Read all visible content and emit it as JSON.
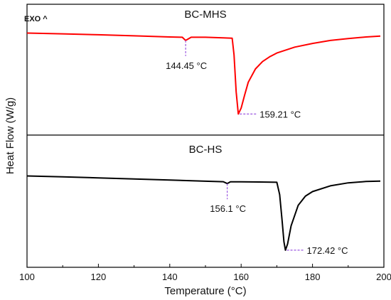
{
  "chart_data": {
    "type": "line",
    "xlabel": "Temperature (°C)",
    "ylabel": "Heat Flow (W/g)",
    "xlim": [
      100,
      200
    ],
    "xticks": [
      100,
      120,
      140,
      160,
      180,
      200
    ],
    "exo_label": "EXO ^",
    "grid": false,
    "panels": [
      {
        "title": "BC-MHS",
        "color": "#ff0000",
        "x": [
          100,
          110,
          120,
          130,
          140,
          143.5,
          144.45,
          146,
          150,
          155,
          157.5,
          158,
          158.6,
          159.21,
          160,
          161,
          162,
          164,
          166,
          168,
          170,
          175,
          180,
          185,
          190,
          195,
          199
        ],
        "y": [
          -0.05,
          -0.15,
          -0.28,
          -0.42,
          -0.58,
          -0.62,
          -1.05,
          -0.62,
          -0.62,
          -0.7,
          -0.75,
          -3.0,
          -8.0,
          -11.0,
          -10.2,
          -8.4,
          -6.7,
          -4.9,
          -3.9,
          -3.25,
          -2.75,
          -1.95,
          -1.45,
          -1.05,
          -0.8,
          -0.58,
          -0.45
        ],
        "annotations": [
          {
            "text": "144.45 °C",
            "x": 144.45
          },
          {
            "text": "159.21 °C",
            "x": 159.21
          }
        ]
      },
      {
        "title": "BC-HS",
        "color": "#000000",
        "x": [
          100,
          110,
          120,
          130,
          140,
          150,
          155,
          156.1,
          157,
          160,
          165,
          170,
          170.8,
          171.5,
          172,
          172.42,
          173,
          174,
          176,
          178,
          180,
          185,
          190,
          195,
          199
        ],
        "y": [
          -0.05,
          -0.17,
          -0.3,
          -0.44,
          -0.58,
          -0.74,
          -0.8,
          -1.05,
          -0.82,
          -0.82,
          -0.84,
          -0.88,
          -2.5,
          -6.0,
          -8.7,
          -9.8,
          -9.0,
          -6.6,
          -3.9,
          -2.7,
          -2.1,
          -1.35,
          -0.95,
          -0.78,
          -0.72
        ],
        "annotations": [
          {
            "text": "156.1 °C",
            "x": 156.1
          },
          {
            "text": "172.42 °C",
            "x": 172.42
          }
        ]
      }
    ]
  }
}
